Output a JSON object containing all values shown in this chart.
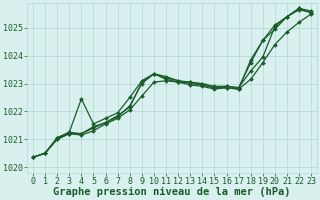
{
  "title": "Graphe pression niveau de la mer (hPa)",
  "ylim": [
    1019.8,
    1025.9
  ],
  "yticks": [
    1020,
    1021,
    1022,
    1023,
    1024,
    1025
  ],
  "xticks": [
    0,
    1,
    2,
    3,
    4,
    5,
    6,
    7,
    8,
    9,
    10,
    11,
    12,
    13,
    14,
    15,
    16,
    17,
    18,
    19,
    20,
    21,
    22,
    23
  ],
  "bg_color": "#d8f0ee",
  "plot_bg_color": "#d8f0ee",
  "grid_color": "#b0d8d4",
  "line_color": "#1a5c2a",
  "series": [
    [
      1020.35,
      1020.5,
      1021.0,
      1021.2,
      1021.2,
      1021.45,
      1021.6,
      1021.85,
      1022.15,
      1023.05,
      1023.35,
      1023.25,
      1023.1,
      1023.05,
      1023.0,
      1022.9,
      1022.9,
      1022.85,
      1023.75,
      1024.55,
      1024.95,
      1025.4,
      1025.7,
      1025.6
    ],
    [
      1020.35,
      1020.5,
      1021.0,
      1021.2,
      1021.15,
      1021.3,
      1021.55,
      1021.75,
      1022.05,
      1022.55,
      1023.05,
      1023.1,
      1023.05,
      1023.05,
      1022.95,
      1022.85,
      1022.85,
      1022.8,
      1023.85,
      1024.55,
      1025.1,
      1025.4,
      1025.65,
      1025.55
    ],
    [
      1020.35,
      1020.5,
      1021.05,
      1021.25,
      1021.2,
      1021.4,
      1021.6,
      1021.8,
      1022.2,
      1023.0,
      1023.35,
      1023.2,
      1023.1,
      1023.0,
      1022.95,
      1022.85,
      1022.9,
      1022.85,
      1023.45,
      1023.95,
      1025.05,
      1025.4,
      1025.7,
      1025.55
    ],
    [
      1020.35,
      1020.5,
      1021.05,
      1021.25,
      1022.45,
      1021.55,
      1021.75,
      1021.95,
      1022.5,
      1023.1,
      1023.35,
      1023.15,
      1023.05,
      1022.95,
      1022.9,
      1022.8,
      1022.85,
      1022.8,
      1023.15,
      1023.75,
      1024.4,
      1024.85,
      1025.2,
      1025.5
    ]
  ],
  "marker": "D",
  "markersize": 2.0,
  "linewidth": 0.9,
  "title_fontsize": 7.5,
  "tick_fontsize": 6.0,
  "figsize": [
    3.2,
    2.0
  ],
  "dpi": 100
}
